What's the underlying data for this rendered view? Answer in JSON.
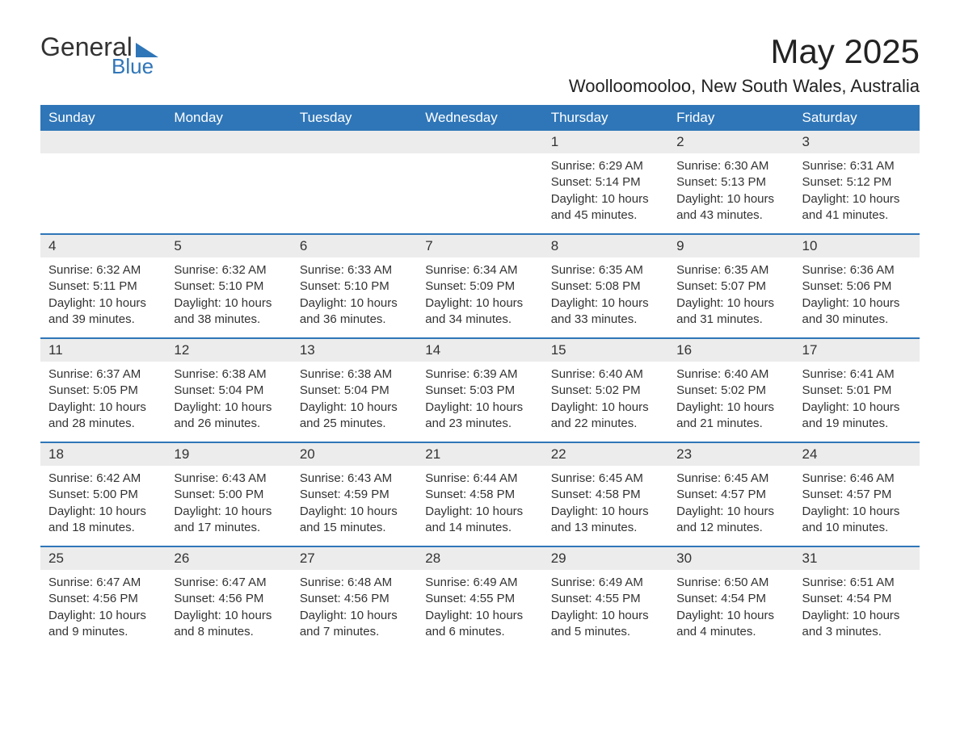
{
  "logo": {
    "word1": "General",
    "word2": "Blue"
  },
  "title": "May 2025",
  "location": "Woolloomooloo, New South Wales, Australia",
  "columns": [
    "Sunday",
    "Monday",
    "Tuesday",
    "Wednesday",
    "Thursday",
    "Friday",
    "Saturday"
  ],
  "colors": {
    "header_bg": "#2f76b8",
    "header_text": "#ffffff",
    "daynum_bg": "#ececec",
    "text": "#333333",
    "rule": "#2f76b8",
    "page_bg": "#ffffff"
  },
  "weeks": [
    [
      null,
      null,
      null,
      null,
      {
        "n": "1",
        "sunrise": "Sunrise: 6:29 AM",
        "sunset": "Sunset: 5:14 PM",
        "daylight": "Daylight: 10 hours and 45 minutes."
      },
      {
        "n": "2",
        "sunrise": "Sunrise: 6:30 AM",
        "sunset": "Sunset: 5:13 PM",
        "daylight": "Daylight: 10 hours and 43 minutes."
      },
      {
        "n": "3",
        "sunrise": "Sunrise: 6:31 AM",
        "sunset": "Sunset: 5:12 PM",
        "daylight": "Daylight: 10 hours and 41 minutes."
      }
    ],
    [
      {
        "n": "4",
        "sunrise": "Sunrise: 6:32 AM",
        "sunset": "Sunset: 5:11 PM",
        "daylight": "Daylight: 10 hours and 39 minutes."
      },
      {
        "n": "5",
        "sunrise": "Sunrise: 6:32 AM",
        "sunset": "Sunset: 5:10 PM",
        "daylight": "Daylight: 10 hours and 38 minutes."
      },
      {
        "n": "6",
        "sunrise": "Sunrise: 6:33 AM",
        "sunset": "Sunset: 5:10 PM",
        "daylight": "Daylight: 10 hours and 36 minutes."
      },
      {
        "n": "7",
        "sunrise": "Sunrise: 6:34 AM",
        "sunset": "Sunset: 5:09 PM",
        "daylight": "Daylight: 10 hours and 34 minutes."
      },
      {
        "n": "8",
        "sunrise": "Sunrise: 6:35 AM",
        "sunset": "Sunset: 5:08 PM",
        "daylight": "Daylight: 10 hours and 33 minutes."
      },
      {
        "n": "9",
        "sunrise": "Sunrise: 6:35 AM",
        "sunset": "Sunset: 5:07 PM",
        "daylight": "Daylight: 10 hours and 31 minutes."
      },
      {
        "n": "10",
        "sunrise": "Sunrise: 6:36 AM",
        "sunset": "Sunset: 5:06 PM",
        "daylight": "Daylight: 10 hours and 30 minutes."
      }
    ],
    [
      {
        "n": "11",
        "sunrise": "Sunrise: 6:37 AM",
        "sunset": "Sunset: 5:05 PM",
        "daylight": "Daylight: 10 hours and 28 minutes."
      },
      {
        "n": "12",
        "sunrise": "Sunrise: 6:38 AM",
        "sunset": "Sunset: 5:04 PM",
        "daylight": "Daylight: 10 hours and 26 minutes."
      },
      {
        "n": "13",
        "sunrise": "Sunrise: 6:38 AM",
        "sunset": "Sunset: 5:04 PM",
        "daylight": "Daylight: 10 hours and 25 minutes."
      },
      {
        "n": "14",
        "sunrise": "Sunrise: 6:39 AM",
        "sunset": "Sunset: 5:03 PM",
        "daylight": "Daylight: 10 hours and 23 minutes."
      },
      {
        "n": "15",
        "sunrise": "Sunrise: 6:40 AM",
        "sunset": "Sunset: 5:02 PM",
        "daylight": "Daylight: 10 hours and 22 minutes."
      },
      {
        "n": "16",
        "sunrise": "Sunrise: 6:40 AM",
        "sunset": "Sunset: 5:02 PM",
        "daylight": "Daylight: 10 hours and 21 minutes."
      },
      {
        "n": "17",
        "sunrise": "Sunrise: 6:41 AM",
        "sunset": "Sunset: 5:01 PM",
        "daylight": "Daylight: 10 hours and 19 minutes."
      }
    ],
    [
      {
        "n": "18",
        "sunrise": "Sunrise: 6:42 AM",
        "sunset": "Sunset: 5:00 PM",
        "daylight": "Daylight: 10 hours and 18 minutes."
      },
      {
        "n": "19",
        "sunrise": "Sunrise: 6:43 AM",
        "sunset": "Sunset: 5:00 PM",
        "daylight": "Daylight: 10 hours and 17 minutes."
      },
      {
        "n": "20",
        "sunrise": "Sunrise: 6:43 AM",
        "sunset": "Sunset: 4:59 PM",
        "daylight": "Daylight: 10 hours and 15 minutes."
      },
      {
        "n": "21",
        "sunrise": "Sunrise: 6:44 AM",
        "sunset": "Sunset: 4:58 PM",
        "daylight": "Daylight: 10 hours and 14 minutes."
      },
      {
        "n": "22",
        "sunrise": "Sunrise: 6:45 AM",
        "sunset": "Sunset: 4:58 PM",
        "daylight": "Daylight: 10 hours and 13 minutes."
      },
      {
        "n": "23",
        "sunrise": "Sunrise: 6:45 AM",
        "sunset": "Sunset: 4:57 PM",
        "daylight": "Daylight: 10 hours and 12 minutes."
      },
      {
        "n": "24",
        "sunrise": "Sunrise: 6:46 AM",
        "sunset": "Sunset: 4:57 PM",
        "daylight": "Daylight: 10 hours and 10 minutes."
      }
    ],
    [
      {
        "n": "25",
        "sunrise": "Sunrise: 6:47 AM",
        "sunset": "Sunset: 4:56 PM",
        "daylight": "Daylight: 10 hours and 9 minutes."
      },
      {
        "n": "26",
        "sunrise": "Sunrise: 6:47 AM",
        "sunset": "Sunset: 4:56 PM",
        "daylight": "Daylight: 10 hours and 8 minutes."
      },
      {
        "n": "27",
        "sunrise": "Sunrise: 6:48 AM",
        "sunset": "Sunset: 4:56 PM",
        "daylight": "Daylight: 10 hours and 7 minutes."
      },
      {
        "n": "28",
        "sunrise": "Sunrise: 6:49 AM",
        "sunset": "Sunset: 4:55 PM",
        "daylight": "Daylight: 10 hours and 6 minutes."
      },
      {
        "n": "29",
        "sunrise": "Sunrise: 6:49 AM",
        "sunset": "Sunset: 4:55 PM",
        "daylight": "Daylight: 10 hours and 5 minutes."
      },
      {
        "n": "30",
        "sunrise": "Sunrise: 6:50 AM",
        "sunset": "Sunset: 4:54 PM",
        "daylight": "Daylight: 10 hours and 4 minutes."
      },
      {
        "n": "31",
        "sunrise": "Sunrise: 6:51 AM",
        "sunset": "Sunset: 4:54 PM",
        "daylight": "Daylight: 10 hours and 3 minutes."
      }
    ]
  ]
}
